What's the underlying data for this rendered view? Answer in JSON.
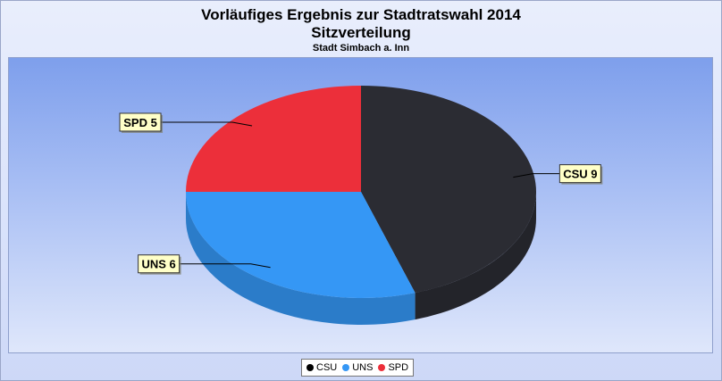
{
  "chart_data": {
    "type": "pie",
    "title": "Vorläufiges Ergebnis zur Stadtratswahl 2014",
    "subtitle": "Sitzverteilung",
    "subsubtitle": "Stadt Simbach a. Inn",
    "slices": [
      {
        "name": "CSU",
        "value": 9,
        "label": "CSU 9",
        "color": "#2b2c33"
      },
      {
        "name": "UNS",
        "value": 6,
        "label": "UNS 6",
        "color": "#3597f5"
      },
      {
        "name": "SPD",
        "value": 5,
        "label": "SPD 5",
        "color": "#ec2f3a"
      }
    ],
    "legend": {
      "position": "bottom-center",
      "entries": [
        "CSU",
        "UNS",
        "SPD"
      ]
    }
  }
}
